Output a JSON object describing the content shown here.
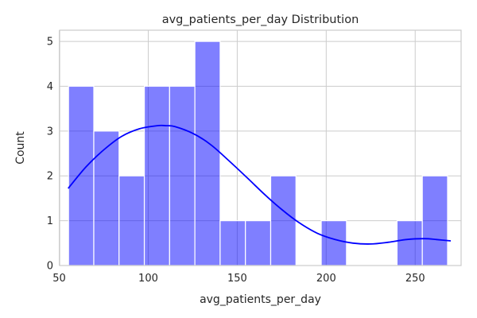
{
  "chart_data": {
    "type": "bar",
    "title": "avg_patients_per_day Distribution",
    "xlabel": "avg_patients_per_day",
    "ylabel": "Count",
    "xlim": [
      50.2,
      275.8
    ],
    "ylim": [
      0,
      5.25
    ],
    "xticks": [
      50,
      100,
      150,
      200,
      250
    ],
    "yticks": [
      0,
      1,
      2,
      3,
      4,
      5
    ],
    "grid": true,
    "bin_edges": [
      55.2,
      69.4,
      83.6,
      97.8,
      112.0,
      126.2,
      140.4,
      154.6,
      168.8,
      183.0,
      197.2,
      211.4,
      225.6,
      239.8,
      254.0,
      268.2
    ],
    "counts": [
      4,
      3,
      2,
      4,
      4,
      5,
      1,
      1,
      2,
      0,
      1,
      0,
      0,
      1,
      2
    ],
    "kde": {
      "x": [
        55,
        65,
        75,
        85,
        95,
        105,
        110,
        115,
        125,
        135,
        145,
        155,
        165,
        175,
        185,
        195,
        205,
        215,
        225,
        235,
        245,
        255,
        262,
        270
      ],
      "y": [
        1.72,
        2.2,
        2.58,
        2.88,
        3.05,
        3.12,
        3.12,
        3.1,
        2.95,
        2.7,
        2.35,
        1.98,
        1.6,
        1.25,
        0.95,
        0.72,
        0.58,
        0.5,
        0.48,
        0.52,
        0.58,
        0.6,
        0.58,
        0.55
      ]
    },
    "colors": {
      "bar": "#0000ff",
      "kde": "#0000ff"
    }
  }
}
